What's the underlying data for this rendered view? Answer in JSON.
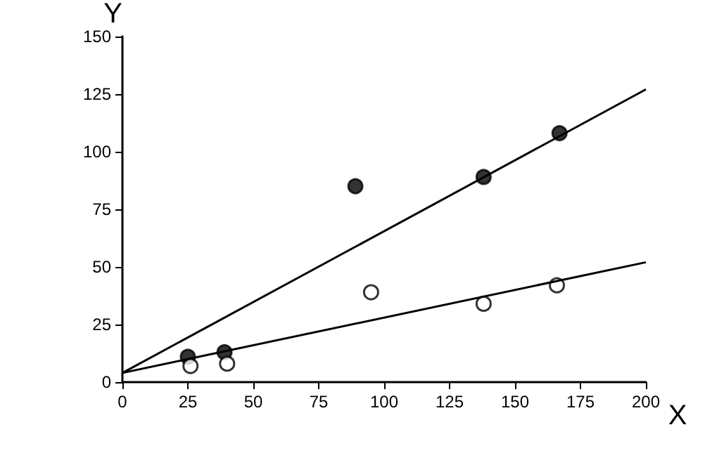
{
  "chart_data": {
    "type": "scatter",
    "xlabel": "X",
    "ylabel": "Y",
    "xlim": [
      0,
      200
    ],
    "ylim": [
      0,
      150
    ],
    "xticks": [
      0,
      25,
      50,
      75,
      100,
      125,
      150,
      175,
      200
    ],
    "yticks": [
      0,
      25,
      50,
      75,
      100,
      125,
      150
    ],
    "grid": false,
    "marker": "circle",
    "series": [
      {
        "color": "#000000",
        "x": [
          25,
          39,
          89,
          138,
          167
        ],
        "values": [
          11,
          13,
          85,
          89,
          108
        ]
      },
      {
        "color": "#ffffff",
        "x": [
          26,
          40,
          95,
          138,
          166
        ],
        "values": [
          7,
          8,
          39,
          34,
          42
        ]
      },
      {
        "type": "line",
        "color": "#000000",
        "marker": "none",
        "x": [
          0,
          200
        ],
        "values": [
          4,
          127
        ]
      },
      {
        "type": "line",
        "color": "#000000",
        "marker": "none",
        "x": [
          0,
          200
        ],
        "values": [
          4,
          52
        ]
      }
    ]
  }
}
